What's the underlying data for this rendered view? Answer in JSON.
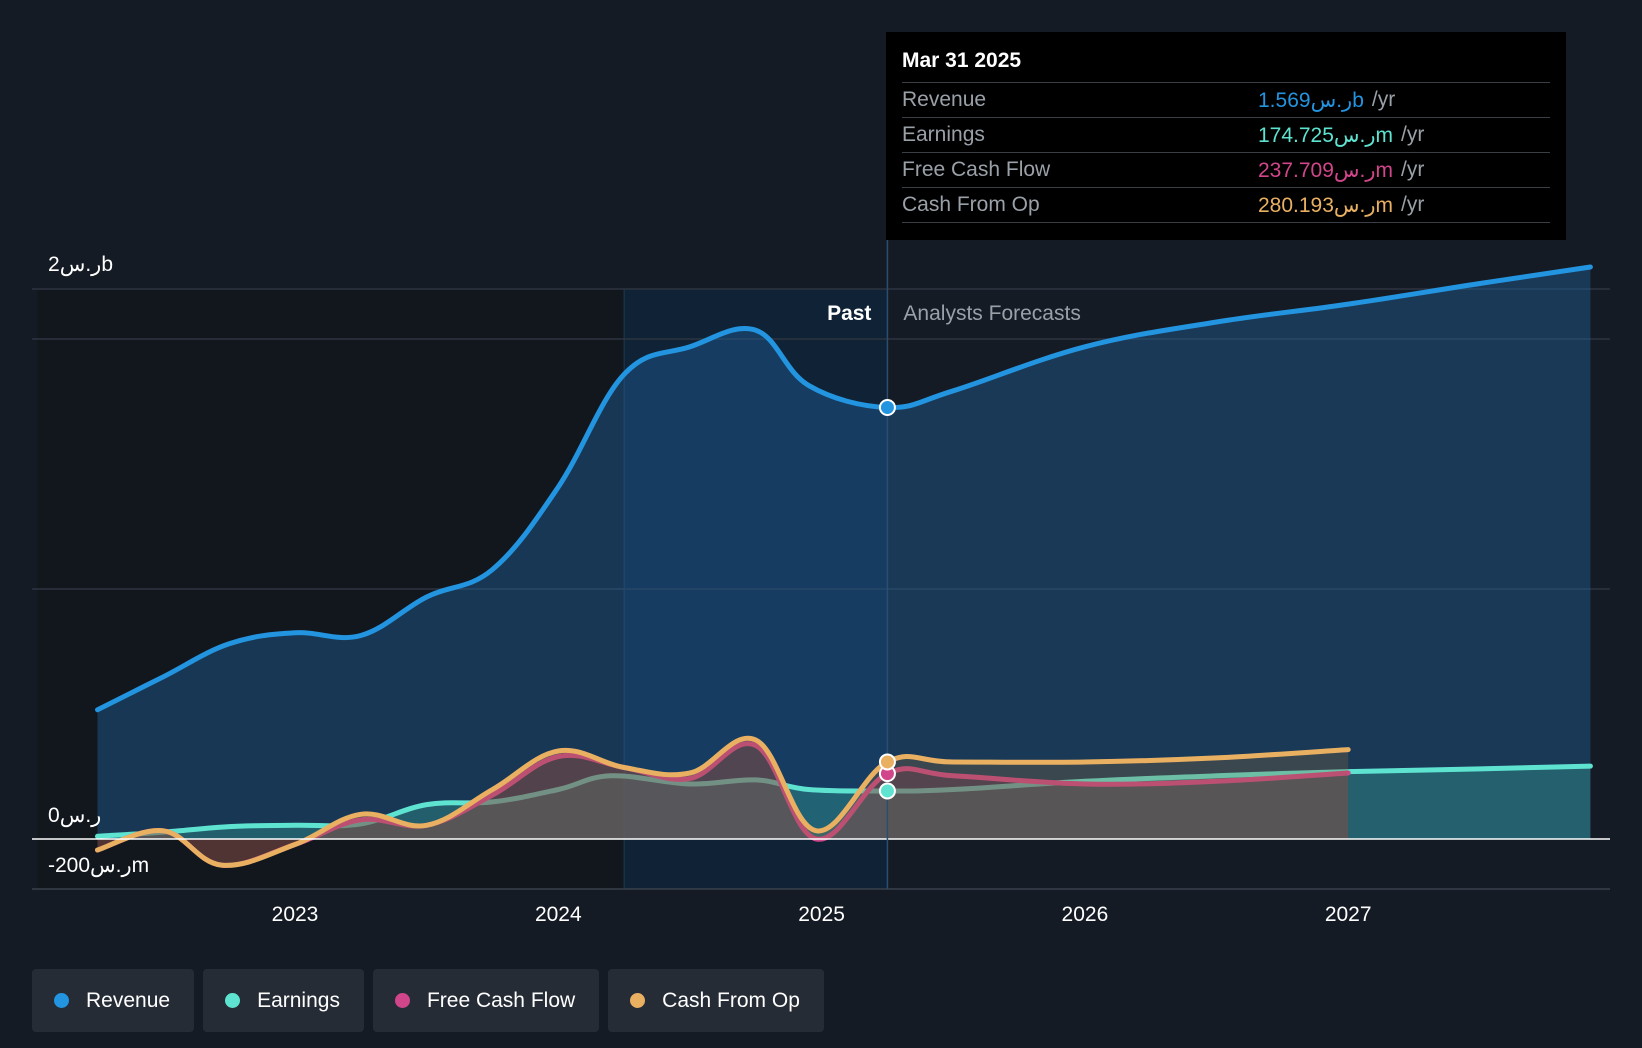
{
  "chart_data": {
    "type": "line",
    "x_range": [
      2022.25,
      2027.92
    ],
    "ylim": [
      -200,
      2000
    ],
    "y_tick_labels": [
      {
        "value": 2000,
        "label": "2ر.سb"
      },
      {
        "value": 0,
        "label": "0ر.س"
      },
      {
        "value": -200,
        "label": "-200ر.سm"
      }
    ],
    "x_ticks": [
      {
        "value": 2023,
        "label": "2023"
      },
      {
        "value": 2024,
        "label": "2024"
      },
      {
        "value": 2025,
        "label": "2025"
      },
      {
        "value": 2026,
        "label": "2026"
      },
      {
        "value": 2027,
        "label": "2027"
      }
    ],
    "divider_x": 2025.25,
    "highlight_start_x": 2024.25,
    "past_label": "Past",
    "forecast_label": "Analysts Forecasts",
    "series": [
      {
        "name": "Revenue",
        "color": "#2394e0",
        "fill": true,
        "points": [
          [
            2022.25,
            470
          ],
          [
            2022.5,
            590
          ],
          [
            2022.75,
            710
          ],
          [
            2023.0,
            750
          ],
          [
            2023.25,
            740
          ],
          [
            2023.5,
            880
          ],
          [
            2023.75,
            980
          ],
          [
            2024.0,
            1280
          ],
          [
            2024.25,
            1690
          ],
          [
            2024.5,
            1790
          ],
          [
            2024.75,
            1850
          ],
          [
            2024.95,
            1650
          ],
          [
            2025.25,
            1569
          ],
          [
            2025.5,
            1630
          ],
          [
            2026.0,
            1790
          ],
          [
            2026.5,
            1880
          ],
          [
            2027.0,
            1945
          ],
          [
            2027.5,
            2020
          ],
          [
            2027.92,
            2080
          ]
        ],
        "highlight": {
          "x": 2025.25,
          "y": 1569
        }
      },
      {
        "name": "Earnings",
        "color": "#5fe3d1",
        "fill": true,
        "points": [
          [
            2022.25,
            10
          ],
          [
            2022.5,
            25
          ],
          [
            2022.75,
            45
          ],
          [
            2023.0,
            50
          ],
          [
            2023.25,
            55
          ],
          [
            2023.5,
            125
          ],
          [
            2023.75,
            135
          ],
          [
            2024.0,
            180
          ],
          [
            2024.2,
            230
          ],
          [
            2024.5,
            200
          ],
          [
            2024.75,
            215
          ],
          [
            2024.95,
            180
          ],
          [
            2025.25,
            174.725
          ],
          [
            2025.5,
            180
          ],
          [
            2026.0,
            210
          ],
          [
            2026.5,
            230
          ],
          [
            2027.0,
            245
          ],
          [
            2027.5,
            255
          ],
          [
            2027.92,
            265
          ]
        ],
        "highlight": {
          "x": 2025.25,
          "y": 174.725
        }
      },
      {
        "name": "Free Cash Flow",
        "color": "#d1468a",
        "fill": true,
        "points": [
          [
            2022.25,
            -40
          ],
          [
            2022.5,
            30
          ],
          [
            2022.72,
            -95
          ],
          [
            2023.0,
            -20
          ],
          [
            2023.25,
            70
          ],
          [
            2023.5,
            50
          ],
          [
            2023.75,
            160
          ],
          [
            2024.0,
            300
          ],
          [
            2024.25,
            260
          ],
          [
            2024.5,
            220
          ],
          [
            2024.75,
            340
          ],
          [
            2024.98,
            0
          ],
          [
            2025.25,
            237.709
          ],
          [
            2025.5,
            230
          ],
          [
            2026.0,
            200
          ],
          [
            2026.5,
            210
          ],
          [
            2027.0,
            240
          ]
        ],
        "highlight": {
          "x": 2025.25,
          "y": 237.709
        }
      },
      {
        "name": "Cash From Op",
        "color": "#e9b062",
        "fill": true,
        "points": [
          [
            2022.25,
            -40
          ],
          [
            2022.5,
            30
          ],
          [
            2022.72,
            -95
          ],
          [
            2023.0,
            -20
          ],
          [
            2023.25,
            90
          ],
          [
            2023.5,
            50
          ],
          [
            2023.75,
            180
          ],
          [
            2024.0,
            320
          ],
          [
            2024.25,
            260
          ],
          [
            2024.5,
            240
          ],
          [
            2024.75,
            360
          ],
          [
            2024.98,
            30
          ],
          [
            2025.25,
            280.193
          ],
          [
            2025.5,
            280
          ],
          [
            2026.0,
            280
          ],
          [
            2026.5,
            295
          ],
          [
            2027.0,
            325
          ]
        ],
        "highlight": {
          "x": 2025.25,
          "y": 280.193
        }
      }
    ]
  },
  "tooltip": {
    "date": "Mar 31 2025",
    "rows": [
      {
        "label": "Revenue",
        "value": "1.569ر.سb",
        "unit": "/yr",
        "color": "#2394e0"
      },
      {
        "label": "Earnings",
        "value": "174.725ر.سm",
        "unit": "/yr",
        "color": "#5fe3d1"
      },
      {
        "label": "Free Cash Flow",
        "value": "237.709ر.سm",
        "unit": "/yr",
        "color": "#d1468a"
      },
      {
        "label": "Cash From Op",
        "value": "280.193ر.سm",
        "unit": "/yr",
        "color": "#e9b062"
      }
    ]
  },
  "legend": [
    {
      "label": "Revenue",
      "color": "#2394e0"
    },
    {
      "label": "Earnings",
      "color": "#5fe3d1"
    },
    {
      "label": "Free Cash Flow",
      "color": "#d1468a"
    },
    {
      "label": "Cash From Op",
      "color": "#e9b062"
    }
  ]
}
